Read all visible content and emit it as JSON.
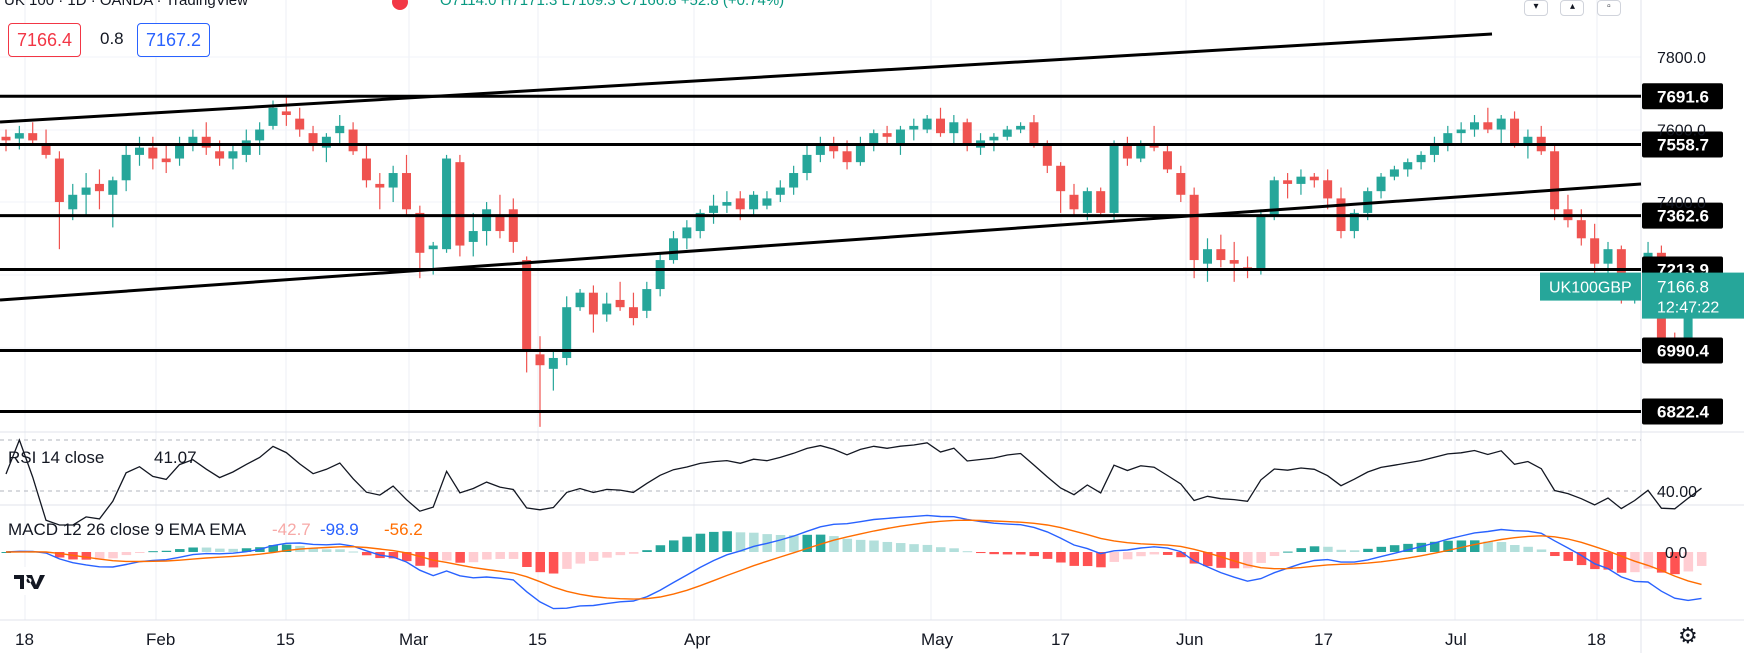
{
  "header": {
    "symbol_line": "UK 100 · 1D · OANDA · TradingView",
    "ohlc": "O7114.0 H7171.3 L7109.3 C7166.8 +52.8 (+0.74%)"
  },
  "quote": {
    "bid": "7166.4",
    "spread": "0.8",
    "ask": "7167.2"
  },
  "top_buttons": [
    "chevron-down-icon",
    "chevron-up-icon",
    "square-icon"
  ],
  "colors": {
    "up": "#26a69a",
    "down": "#ef5350",
    "rsi": "#131722",
    "macd": "#2962ff",
    "signal": "#ff6d00",
    "hist_up_strong": "#26a69a",
    "hist_up_weak": "#b2dfdb",
    "hist_down_strong": "#ff5252",
    "hist_down_weak": "#ffcdd2",
    "label_bg": "#000000",
    "last_price_bg": "#26a69a"
  },
  "chart_data": {
    "type": "candlestick",
    "symbol": "UK100GBP",
    "y_axis_ticks": [
      "7800.0",
      "7600.0",
      "7400.0"
    ],
    "levels": [
      "7691.6",
      "7558.7",
      "7362.6",
      "7213.9",
      "6990.4",
      "6822.4"
    ],
    "last_price": {
      "label": "UK100GBP",
      "price": "7166.8",
      "countdown": "12:47:22"
    },
    "x_axis_labels": [
      "18",
      "Feb",
      "15",
      "Mar",
      "15",
      "Apr",
      "May",
      "17",
      "Jun",
      "17",
      "Jul",
      "18"
    ],
    "ohlc": [
      [
        "2022-01-18",
        7580,
        7600,
        7540,
        7570
      ],
      [
        "2022-01-19",
        7575,
        7610,
        7545,
        7590
      ],
      [
        "2022-01-20",
        7590,
        7620,
        7560,
        7570
      ],
      [
        "2022-01-21",
        7560,
        7600,
        7520,
        7530
      ],
      [
        "2022-01-24",
        7520,
        7540,
        7270,
        7400
      ],
      [
        "2022-01-25",
        7380,
        7450,
        7350,
        7420
      ],
      [
        "2022-01-26",
        7420,
        7480,
        7360,
        7440
      ],
      [
        "2022-01-27",
        7450,
        7490,
        7380,
        7430
      ],
      [
        "2022-01-28",
        7420,
        7470,
        7330,
        7460
      ],
      [
        "2022-01-31",
        7460,
        7560,
        7430,
        7530
      ],
      [
        "2022-02-01",
        7530,
        7580,
        7500,
        7550
      ],
      [
        "2022-02-02",
        7550,
        7580,
        7490,
        7520
      ],
      [
        "2022-02-03",
        7520,
        7560,
        7480,
        7510
      ],
      [
        "2022-02-04",
        7520,
        7580,
        7500,
        7560
      ],
      [
        "2022-02-07",
        7560,
        7600,
        7540,
        7580
      ],
      [
        "2022-02-08",
        7580,
        7620,
        7530,
        7550
      ],
      [
        "2022-02-09",
        7540,
        7570,
        7500,
        7520
      ],
      [
        "2022-02-10",
        7520,
        7560,
        7490,
        7540
      ],
      [
        "2022-02-11",
        7530,
        7600,
        7510,
        7570
      ],
      [
        "2022-02-14",
        7570,
        7620,
        7530,
        7600
      ],
      [
        "2022-02-15",
        7610,
        7680,
        7600,
        7660
      ],
      [
        "2022-02-16",
        7650,
        7690,
        7610,
        7640
      ],
      [
        "2022-02-17",
        7630,
        7660,
        7580,
        7600
      ],
      [
        "2022-02-18",
        7590,
        7610,
        7540,
        7560
      ],
      [
        "2022-02-21",
        7550,
        7590,
        7510,
        7580
      ],
      [
        "2022-02-22",
        7590,
        7640,
        7560,
        7610
      ],
      [
        "2022-02-23",
        7600,
        7620,
        7530,
        7540
      ],
      [
        "2022-02-24",
        7520,
        7560,
        7440,
        7460
      ],
      [
        "2022-02-25",
        7450,
        7480,
        7380,
        7440
      ],
      [
        "2022-02-28",
        7440,
        7500,
        7400,
        7480
      ],
      [
        "2022-03-01",
        7480,
        7530,
        7360,
        7380
      ],
      [
        "2022-03-02",
        7370,
        7390,
        7190,
        7260
      ],
      [
        "2022-03-03",
        7270,
        7290,
        7200,
        7280
      ],
      [
        "2022-03-04",
        7270,
        7530,
        7260,
        7520
      ],
      [
        "2022-03-07",
        7510,
        7530,
        7250,
        7280
      ],
      [
        "2022-03-08",
        7290,
        7370,
        7250,
        7320
      ],
      [
        "2022-03-09",
        7320,
        7400,
        7280,
        7380
      ],
      [
        "2022-03-10",
        7360,
        7420,
        7300,
        7320
      ],
      [
        "2022-03-11",
        7380,
        7410,
        7260,
        7290
      ],
      [
        "2022-03-14",
        7240,
        7250,
        6930,
        6990
      ],
      [
        "2022-03-15",
        6980,
        7030,
        6780,
        6950
      ],
      [
        "2022-03-16",
        6940,
        6990,
        6880,
        6970
      ],
      [
        "2022-03-17",
        6970,
        7140,
        6950,
        7110
      ],
      [
        "2022-03-18",
        7110,
        7160,
        7100,
        7150
      ],
      [
        "2022-03-21",
        7150,
        7170,
        7040,
        7090
      ],
      [
        "2022-03-22",
        7090,
        7150,
        7070,
        7120
      ],
      [
        "2022-03-23",
        7130,
        7180,
        7100,
        7110
      ],
      [
        "2022-03-24",
        7110,
        7150,
        7060,
        7080
      ],
      [
        "2022-03-25",
        7100,
        7180,
        7080,
        7160
      ],
      [
        "2022-03-28",
        7160,
        7260,
        7140,
        7240
      ],
      [
        "2022-03-29",
        7240,
        7320,
        7230,
        7300
      ],
      [
        "2022-03-30",
        7300,
        7350,
        7270,
        7330
      ],
      [
        "2022-03-31",
        7320,
        7380,
        7300,
        7370
      ],
      [
        "2022-04-01",
        7370,
        7420,
        7340,
        7390
      ],
      [
        "2022-04-04",
        7390,
        7430,
        7370,
        7400
      ],
      [
        "2022-04-05",
        7410,
        7430,
        7350,
        7380
      ],
      [
        "2022-04-06",
        7380,
        7430,
        7360,
        7420
      ],
      [
        "2022-04-07",
        7390,
        7430,
        7380,
        7410
      ],
      [
        "2022-04-08",
        7420,
        7460,
        7400,
        7440
      ],
      [
        "2022-04-11",
        7440,
        7500,
        7420,
        7480
      ],
      [
        "2022-04-12",
        7480,
        7560,
        7460,
        7530
      ],
      [
        "2022-04-13",
        7530,
        7580,
        7510,
        7560
      ],
      [
        "2022-04-14",
        7560,
        7580,
        7520,
        7540
      ],
      [
        "2022-04-19",
        7540,
        7570,
        7490,
        7510
      ],
      [
        "2022-04-20",
        7510,
        7580,
        7500,
        7560
      ],
      [
        "2022-04-21",
        7560,
        7600,
        7540,
        7590
      ],
      [
        "2022-04-22",
        7590,
        7610,
        7560,
        7580
      ],
      [
        "2022-04-25",
        7560,
        7610,
        7530,
        7600
      ],
      [
        "2022-04-26",
        7600,
        7630,
        7570,
        7610
      ],
      [
        "2022-04-27",
        7600,
        7640,
        7590,
        7630
      ],
      [
        "2022-04-28",
        7630,
        7660,
        7580,
        7590
      ],
      [
        "2022-04-29",
        7590,
        7640,
        7560,
        7620
      ],
      [
        "2022-05-03",
        7620,
        7630,
        7540,
        7560
      ],
      [
        "2022-05-04",
        7550,
        7590,
        7530,
        7570
      ],
      [
        "2022-05-05",
        7570,
        7590,
        7540,
        7580
      ],
      [
        "2022-05-06",
        7580,
        7610,
        7570,
        7600
      ],
      [
        "2022-05-09",
        7600,
        7620,
        7590,
        7610
      ],
      [
        "2022-05-10",
        7620,
        7640,
        7550,
        7560
      ],
      [
        "2022-05-11",
        7560,
        7570,
        7480,
        7500
      ],
      [
        "2022-05-12",
        7500,
        7510,
        7370,
        7430
      ],
      [
        "2022-05-13",
        7420,
        7450,
        7360,
        7380
      ],
      [
        "2022-05-16",
        7370,
        7440,
        7350,
        7430
      ],
      [
        "2022-05-17",
        7430,
        7440,
        7360,
        7370
      ],
      [
        "2022-05-18",
        7370,
        7570,
        7350,
        7560
      ],
      [
        "2022-05-19",
        7560,
        7580,
        7500,
        7520
      ],
      [
        "2022-05-20",
        7520,
        7570,
        7510,
        7560
      ],
      [
        "2022-05-23",
        7560,
        7610,
        7540,
        7550
      ],
      [
        "2022-05-24",
        7540,
        7560,
        7480,
        7490
      ],
      [
        "2022-05-25",
        7480,
        7500,
        7400,
        7420
      ],
      [
        "2022-05-26",
        7420,
        7440,
        7190,
        7240
      ],
      [
        "2022-05-27",
        7230,
        7300,
        7180,
        7270
      ],
      [
        "2022-05-30",
        7270,
        7310,
        7220,
        7240
      ],
      [
        "2022-05-31",
        7240,
        7290,
        7180,
        7230
      ],
      [
        "2022-06-01",
        7220,
        7250,
        7190,
        7210
      ],
      [
        "2022-06-02",
        7210,
        7380,
        7200,
        7360
      ],
      [
        "2022-06-03",
        7360,
        7470,
        7350,
        7460
      ],
      [
        "2022-06-06",
        7460,
        7480,
        7410,
        7450
      ],
      [
        "2022-06-07",
        7450,
        7490,
        7420,
        7470
      ],
      [
        "2022-06-08",
        7470,
        7480,
        7440,
        7460
      ],
      [
        "2022-06-09",
        7460,
        7490,
        7380,
        7410
      ],
      [
        "2022-06-10",
        7410,
        7440,
        7300,
        7320
      ],
      [
        "2022-06-13",
        7320,
        7380,
        7300,
        7370
      ],
      [
        "2022-06-14",
        7370,
        7440,
        7350,
        7430
      ],
      [
        "2022-06-15",
        7430,
        7480,
        7410,
        7470
      ],
      [
        "2022-06-16",
        7470,
        7500,
        7460,
        7490
      ],
      [
        "2022-06-17",
        7490,
        7520,
        7470,
        7510
      ],
      [
        "2022-06-20",
        7510,
        7540,
        7490,
        7530
      ],
      [
        "2022-06-21",
        7530,
        7580,
        7510,
        7560
      ],
      [
        "2022-06-22",
        7560,
        7610,
        7540,
        7590
      ],
      [
        "2022-06-23",
        7590,
        7620,
        7560,
        7600
      ],
      [
        "2022-06-24",
        7600,
        7640,
        7580,
        7620
      ],
      [
        "2022-06-27",
        7620,
        7660,
        7590,
        7600
      ],
      [
        "2022-06-28",
        7600,
        7640,
        7560,
        7630
      ],
      [
        "2022-06-29",
        7630,
        7650,
        7550,
        7560
      ],
      [
        "2022-06-30",
        7560,
        7600,
        7520,
        7580
      ],
      [
        "2022-07-01",
        7580,
        7610,
        7530,
        7540
      ],
      [
        "2022-07-04",
        7540,
        7560,
        7350,
        7380
      ],
      [
        "2022-07-05",
        7380,
        7420,
        7330,
        7350
      ],
      [
        "2022-07-06",
        7350,
        7380,
        7280,
        7300
      ],
      [
        "2022-07-07",
        7300,
        7340,
        7200,
        7230
      ],
      [
        "2022-07-08",
        7230,
        7290,
        7200,
        7270
      ],
      [
        "2022-07-11",
        7270,
        7280,
        7120,
        7140
      ],
      [
        "2022-07-12",
        7140,
        7200,
        7120,
        7190
      ],
      [
        "2022-07-13",
        7190,
        7290,
        7180,
        7260
      ],
      [
        "2022-07-14",
        7260,
        7280,
        7000,
        7010
      ],
      [
        "2022-07-15",
        7010,
        7040,
        6990,
        7000
      ],
      [
        "2022-07-18",
        7010,
        7090,
        6960,
        7080
      ],
      [
        "2022-07-19",
        7114,
        7171.3,
        7109.3,
        7166.8
      ]
    ],
    "indicators": {
      "rsi": {
        "label": "RSI 14 close",
        "value": "41.07",
        "level_label": "40.00"
      },
      "macd": {
        "label": "MACD 12 26 close 9 EMA EMA",
        "hist": "-42.7",
        "macd": "-98.9",
        "signal": "-56.2",
        "zero_label": "0.0"
      }
    }
  }
}
